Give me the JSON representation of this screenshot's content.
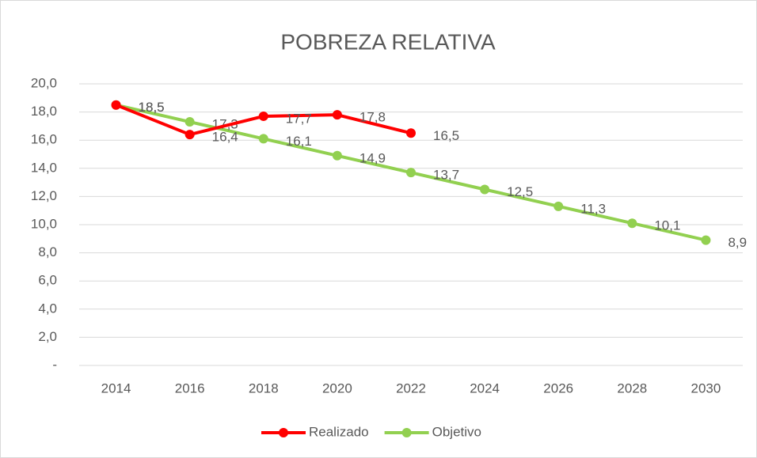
{
  "chart_data": {
    "type": "line",
    "title": "POBREZA RELATIVA",
    "categories": [
      "2014",
      "2016",
      "2018",
      "2020",
      "2022",
      "2024",
      "2026",
      "2028",
      "2030"
    ],
    "series": [
      {
        "name": "Realizado",
        "color": "#ff0000",
        "values": [
          18.5,
          16.4,
          17.7,
          17.8,
          16.5,
          null,
          null,
          null,
          null
        ],
        "value_labels": [
          "18,5",
          "16,4",
          "17,7",
          "17,8",
          "16,5",
          null,
          null,
          null,
          null
        ]
      },
      {
        "name": "Objetivo",
        "color": "#92d050",
        "values": [
          18.5,
          17.3,
          16.1,
          14.9,
          13.7,
          12.5,
          11.3,
          10.1,
          8.9
        ],
        "value_labels": [
          "18,5",
          "17,3",
          "16,1",
          "14,9",
          "13,7",
          "12,5",
          "11,3",
          "10,1",
          "8,9"
        ]
      }
    ],
    "ylim": [
      0,
      20
    ],
    "yticks": [
      {
        "value": 0,
        "label": "-"
      },
      {
        "value": 2,
        "label": "2,0"
      },
      {
        "value": 4,
        "label": "4,0"
      },
      {
        "value": 6,
        "label": "6,0"
      },
      {
        "value": 8,
        "label": "8,0"
      },
      {
        "value": 10,
        "label": "10,0"
      },
      {
        "value": 12,
        "label": "12,0"
      },
      {
        "value": 14,
        "label": "14,0"
      },
      {
        "value": 16,
        "label": "16,0"
      },
      {
        "value": 18,
        "label": "18,0"
      },
      {
        "value": 20,
        "label": "20,0"
      }
    ],
    "grid": true,
    "legend": "bottom"
  }
}
